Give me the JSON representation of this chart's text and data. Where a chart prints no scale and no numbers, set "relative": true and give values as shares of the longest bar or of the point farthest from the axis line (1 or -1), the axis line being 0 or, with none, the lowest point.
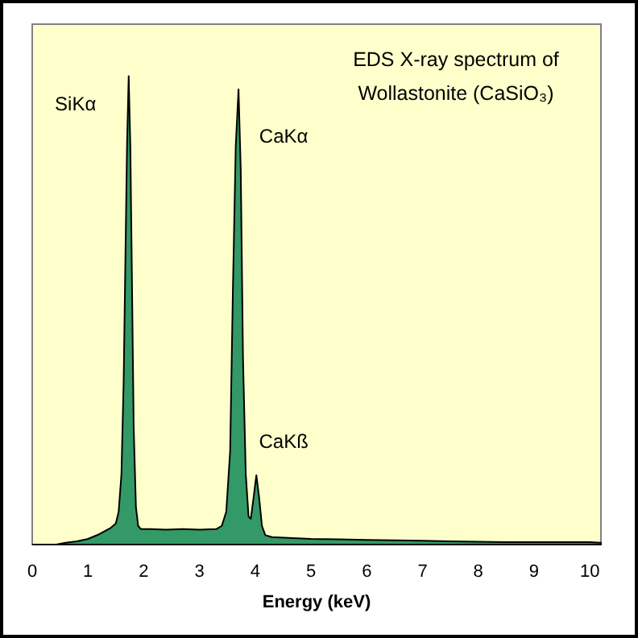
{
  "chart_data": {
    "type": "area",
    "title": "EDS X-ray spectrum of Wollastonite (CaSiO₃)",
    "xlabel": "Energy (keV)",
    "relative": true,
    "xlim": [
      0,
      10.2
    ],
    "xticks": [
      0,
      1,
      2,
      3,
      4,
      5,
      6,
      7,
      8,
      9,
      10
    ],
    "grid": false,
    "annotations": [
      {
        "text": "SiKα",
        "x": 1.73,
        "y": 1
      },
      {
        "text": "CaKα",
        "x": 3.7,
        "y": 0.972
      },
      {
        "text": "CaKß",
        "x": 4.02,
        "y": 0.148
      }
    ],
    "x": [
      0.43,
      0.6,
      0.8,
      1.0,
      1.2,
      1.4,
      1.5,
      1.55,
      1.6,
      1.64,
      1.67,
      1.7,
      1.73,
      1.76,
      1.79,
      1.82,
      1.86,
      1.9,
      1.95,
      2.1,
      2.4,
      2.7,
      3.0,
      3.3,
      3.4,
      3.48,
      3.55,
      3.6,
      3.65,
      3.7,
      3.74,
      3.78,
      3.83,
      3.88,
      3.92,
      3.97,
      4.02,
      4.07,
      4.12,
      4.18,
      4.3,
      4.6,
      5.0,
      5.5,
      6.0,
      6.5,
      7.0,
      7.5,
      8.0,
      8.5,
      9.0,
      9.5,
      10.0,
      10.2
    ],
    "series": [
      {
        "color": "#339966",
        "values": [
          0,
          0.004,
          0.007,
          0.012,
          0.022,
          0.035,
          0.045,
          0.07,
          0.15,
          0.35,
          0.6,
          0.85,
          1,
          0.85,
          0.55,
          0.25,
          0.08,
          0.04,
          0.033,
          0.033,
          0.032,
          0.033,
          0.032,
          0.033,
          0.04,
          0.07,
          0.2,
          0.55,
          0.85,
          0.972,
          0.8,
          0.4,
          0.15,
          0.06,
          0.055,
          0.1,
          0.148,
          0.1,
          0.04,
          0.02,
          0.016,
          0.014,
          0.012,
          0.011,
          0.01,
          0.009,
          0.008,
          0.007,
          0.006,
          0.005,
          0.005,
          0.005,
          0.005,
          0.004
        ]
      }
    ]
  }
}
